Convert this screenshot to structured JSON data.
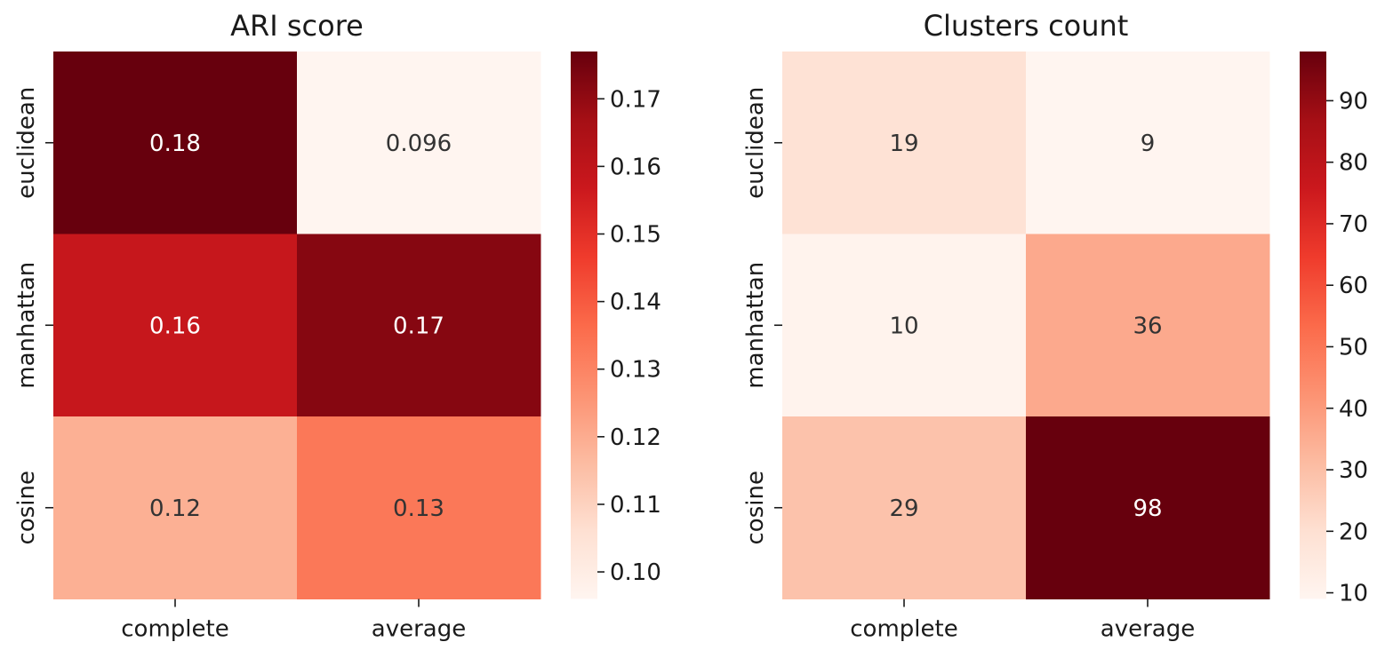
{
  "chart_data": [
    {
      "type": "heatmap",
      "title": "ARI score",
      "x_categories": [
        "complete",
        "average"
      ],
      "y_categories": [
        "euclidean",
        "manhattan",
        "cosine"
      ],
      "values": [
        [
          0.177,
          0.096
        ],
        [
          0.158,
          0.172
        ],
        [
          0.119,
          0.133
        ]
      ],
      "annotations": [
        [
          "0.18",
          "0.096"
        ],
        [
          "0.16",
          "0.17"
        ],
        [
          "0.12",
          "0.13"
        ]
      ],
      "colormap": "Reds",
      "colorbar": {
        "range": [
          0.096,
          0.177
        ],
        "ticks": [
          0.1,
          0.11,
          0.12,
          0.13,
          0.14,
          0.15,
          0.16,
          0.17
        ],
        "tick_labels": [
          "0.10",
          "0.11",
          "0.12",
          "0.13",
          "0.14",
          "0.15",
          "0.16",
          "0.17"
        ]
      }
    },
    {
      "type": "heatmap",
      "title": "Clusters count",
      "x_categories": [
        "complete",
        "average"
      ],
      "y_categories": [
        "euclidean",
        "manhattan",
        "cosine"
      ],
      "values": [
        [
          19,
          9
        ],
        [
          10,
          36
        ],
        [
          29,
          98
        ]
      ],
      "annotations": [
        [
          "19",
          "9"
        ],
        [
          "10",
          "36"
        ],
        [
          "29",
          "98"
        ]
      ],
      "colormap": "Reds",
      "colorbar": {
        "range": [
          9,
          98
        ],
        "ticks": [
          10,
          20,
          30,
          40,
          50,
          60,
          70,
          80,
          90
        ],
        "tick_labels": [
          "10",
          "20",
          "30",
          "40",
          "50",
          "60",
          "70",
          "80",
          "90"
        ]
      }
    }
  ]
}
